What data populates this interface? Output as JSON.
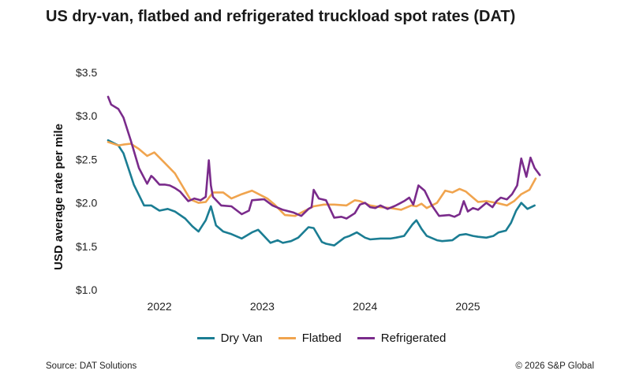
{
  "chart_data": {
    "type": "line",
    "title": "US dry-van, flatbed and refrigerated truckload spot rates (DAT)",
    "ylabel": "USD average rate per mile",
    "xlabel": "",
    "ylim": [
      1.0,
      3.5
    ],
    "yticks": [
      1.0,
      1.5,
      2.0,
      2.5,
      3.0,
      3.5
    ],
    "ytick_labels": [
      "$1.0",
      "$1.5",
      "$2.0",
      "$2.5",
      "$3.0",
      "$3.5"
    ],
    "xlim": [
      2021.5,
      2025.86
    ],
    "xticks": [
      2022.0,
      2023.0,
      2024.0,
      2025.0
    ],
    "xtick_labels": [
      "2022",
      "2023",
      "2024",
      "2025"
    ],
    "grid": false,
    "legend_position": "bottom-center",
    "series": [
      {
        "name": "Dry Van",
        "color": "#1b7d93",
        "x": [
          2021.5,
          2021.6,
          2021.65,
          2021.75,
          2021.85,
          2021.92,
          2022.0,
          2022.08,
          2022.15,
          2022.25,
          2022.32,
          2022.38,
          2022.45,
          2022.5,
          2022.55,
          2022.62,
          2022.7,
          2022.8,
          2022.9,
          2022.96,
          2023.0,
          2023.08,
          2023.15,
          2023.2,
          2023.28,
          2023.35,
          2023.45,
          2023.5,
          2023.58,
          2023.62,
          2023.7,
          2023.8,
          2023.85,
          2023.92,
          2024.0,
          2024.05,
          2024.15,
          2024.25,
          2024.3,
          2024.38,
          2024.46,
          2024.5,
          2024.55,
          2024.6,
          2024.7,
          2024.75,
          2024.85,
          2024.92,
          2024.98,
          2025.05,
          2025.1,
          2025.18,
          2025.25,
          2025.3,
          2025.37,
          2025.42,
          2025.47,
          2025.52,
          2025.58,
          2025.65
        ],
        "values": [
          2.72,
          2.66,
          2.57,
          2.21,
          1.97,
          1.97,
          1.91,
          1.93,
          1.9,
          1.82,
          1.73,
          1.67,
          1.8,
          1.96,
          1.74,
          1.67,
          1.64,
          1.59,
          1.66,
          1.69,
          1.64,
          1.54,
          1.57,
          1.54,
          1.56,
          1.6,
          1.72,
          1.71,
          1.55,
          1.53,
          1.51,
          1.6,
          1.62,
          1.66,
          1.6,
          1.58,
          1.59,
          1.59,
          1.6,
          1.62,
          1.75,
          1.8,
          1.7,
          1.62,
          1.57,
          1.56,
          1.57,
          1.63,
          1.64,
          1.62,
          1.61,
          1.6,
          1.62,
          1.66,
          1.68,
          1.77,
          1.91,
          2.0,
          1.93,
          1.97
        ]
      },
      {
        "name": "Flatbed",
        "color": "#f0a44e",
        "x": [
          2021.5,
          2021.6,
          2021.65,
          2021.72,
          2021.8,
          2021.88,
          2021.95,
          2022.05,
          2022.15,
          2022.22,
          2022.3,
          2022.38,
          2022.45,
          2022.52,
          2022.62,
          2022.7,
          2022.8,
          2022.9,
          2023.0,
          2023.05,
          2023.12,
          2023.22,
          2023.32,
          2023.4,
          2023.5,
          2023.6,
          2023.7,
          2023.82,
          2023.9,
          2023.95,
          2024.05,
          2024.15,
          2024.25,
          2024.35,
          2024.45,
          2024.5,
          2024.55,
          2024.6,
          2024.7,
          2024.78,
          2024.85,
          2024.92,
          2024.98,
          2025.05,
          2025.1,
          2025.18,
          2025.28,
          2025.38,
          2025.45,
          2025.52,
          2025.6,
          2025.66
        ],
        "values": [
          2.7,
          2.66,
          2.67,
          2.68,
          2.62,
          2.54,
          2.58,
          2.46,
          2.34,
          2.2,
          2.04,
          2.0,
          2.01,
          2.12,
          2.12,
          2.05,
          2.1,
          2.14,
          2.08,
          2.05,
          1.98,
          1.86,
          1.85,
          1.9,
          1.96,
          1.98,
          1.98,
          1.97,
          2.03,
          2.02,
          1.97,
          1.95,
          1.94,
          1.92,
          1.97,
          1.96,
          1.99,
          1.94,
          2.0,
          2.14,
          2.12,
          2.16,
          2.13,
          2.06,
          2.01,
          2.02,
          2.0,
          1.97,
          2.02,
          2.1,
          2.15,
          2.28
        ]
      },
      {
        "name": "Refrigerated",
        "color": "#7a2b8b",
        "x": [
          2021.5,
          2021.53,
          2021.6,
          2021.65,
          2021.72,
          2021.8,
          2021.88,
          2021.92,
          2021.94,
          2022.0,
          2022.05,
          2022.1,
          2022.15,
          2022.2,
          2022.28,
          2022.34,
          2022.4,
          2022.45,
          2022.48,
          2022.5,
          2022.52,
          2022.6,
          2022.7,
          2022.8,
          2022.87,
          2022.9,
          2023.0,
          2023.02,
          2023.1,
          2023.2,
          2023.3,
          2023.38,
          2023.45,
          2023.48,
          2023.5,
          2023.55,
          2023.62,
          2023.7,
          2023.77,
          2023.82,
          2023.9,
          2023.95,
          2024.0,
          2024.05,
          2024.1,
          2024.15,
          2024.22,
          2024.3,
          2024.38,
          2024.43,
          2024.47,
          2024.52,
          2024.58,
          2024.65,
          2024.72,
          2024.82,
          2024.87,
          2024.92,
          2024.96,
          2025.0,
          2025.05,
          2025.1,
          2025.18,
          2025.24,
          2025.28,
          2025.32,
          2025.38,
          2025.43,
          2025.48,
          2025.52,
          2025.57,
          2025.61,
          2025.65,
          2025.7
        ],
        "values": [
          3.22,
          3.13,
          3.08,
          2.98,
          2.72,
          2.4,
          2.22,
          2.31,
          2.29,
          2.21,
          2.21,
          2.2,
          2.17,
          2.13,
          2.02,
          2.05,
          2.03,
          2.07,
          2.49,
          2.2,
          2.07,
          1.97,
          1.96,
          1.87,
          1.91,
          2.03,
          2.04,
          2.04,
          1.97,
          1.92,
          1.89,
          1.85,
          1.93,
          1.95,
          2.15,
          2.05,
          2.03,
          1.83,
          1.84,
          1.82,
          1.88,
          1.98,
          2.0,
          1.95,
          1.94,
          1.97,
          1.93,
          1.97,
          2.02,
          2.06,
          1.98,
          2.2,
          2.14,
          1.97,
          1.85,
          1.86,
          1.84,
          1.87,
          2.02,
          1.9,
          1.94,
          1.92,
          2.0,
          1.95,
          2.02,
          2.06,
          2.04,
          2.1,
          2.2,
          2.51,
          2.3,
          2.52,
          2.4,
          2.32
        ]
      }
    ]
  },
  "footer": {
    "source": "Source: DAT Solutions",
    "copyright": "© 2026 S&P Global"
  }
}
